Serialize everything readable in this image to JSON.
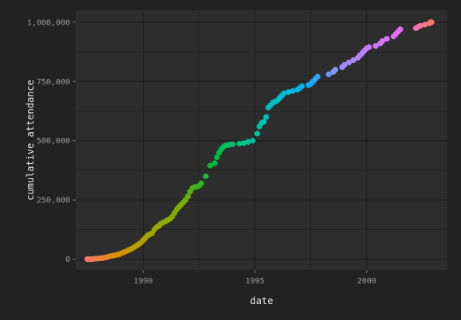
{
  "chart_data": {
    "type": "scatter",
    "title": "",
    "xlabel": "date",
    "ylabel": "cumulative attendance",
    "x_ticks": [
      "1990",
      "1995",
      "2000"
    ],
    "y_ticks": [
      "0",
      "250,000",
      "500,000",
      "750,000",
      "1,000,000"
    ],
    "x_tick_values": [
      1990,
      1995,
      2000
    ],
    "y_tick_values": [
      0,
      250000,
      500000,
      750000,
      1000000
    ],
    "xlim": [
      1986.985,
      2003.61
    ],
    "ylim": [
      -45000,
      1050000
    ],
    "grid": true,
    "legend": "none",
    "colors": {
      "background": "#222222",
      "panel": "#2d2d2d",
      "grid": "#1e1e1e",
      "gradient": [
        "#f8766d",
        "#e76bf3",
        "#c77cff",
        "#9590ff",
        "#00b0f6",
        "#00bfc4",
        "#00c08b",
        "#00ba38",
        "#7cae00",
        "#a3a500",
        "#d89000",
        "#f8766d"
      ]
    },
    "points_x": [
      1987.5,
      1987.6,
      1987.7,
      1987.8,
      1987.9,
      1988.0,
      1988.1,
      1988.2,
      1988.3,
      1988.4,
      1988.5,
      1988.6,
      1988.7,
      1988.8,
      1988.9,
      1989.0,
      1989.1,
      1989.2,
      1989.3,
      1989.4,
      1989.5,
      1989.6,
      1989.7,
      1989.8,
      1989.9,
      1990.0,
      1990.1,
      1990.2,
      1990.3,
      1990.4,
      1990.5,
      1990.6,
      1990.7,
      1990.75,
      1990.8,
      1990.9,
      1991.0,
      1991.1,
      1991.2,
      1991.3,
      1991.4,
      1991.5,
      1991.6,
      1991.7,
      1991.8,
      1991.9,
      1992.0,
      1992.1,
      1992.2,
      1992.3,
      1992.4,
      1992.5,
      1992.6,
      1992.8,
      1993.0,
      1993.2,
      1993.3,
      1993.4,
      1993.5,
      1993.6,
      1993.7,
      1993.8,
      1993.9,
      1994.0,
      1994.3,
      1994.5,
      1994.7,
      1994.9,
      1995.1,
      1995.2,
      1995.3,
      1995.4,
      1995.5,
      1995.6,
      1995.7,
      1995.8,
      1995.9,
      1996.0,
      1996.1,
      1996.2,
      1996.3,
      1996.5,
      1996.7,
      1996.9,
      1997.0,
      1997.1,
      1997.4,
      1997.5,
      1997.6,
      1997.7,
      1997.8,
      1998.3,
      1998.5,
      1998.6,
      1998.9,
      1999.0,
      1999.2,
      1999.4,
      1999.6,
      1999.7,
      1999.8,
      1999.9,
      2000.0,
      2000.1,
      2000.4,
      2000.6,
      2000.7,
      2000.9,
      2001.2,
      2001.3,
      2001.4,
      2001.5,
      2002.2,
      2002.3,
      2002.4,
      2002.6,
      2002.8,
      2002.85,
      2002.9
    ],
    "points_y": [
      0,
      0,
      0,
      1000,
      2000,
      3000,
      4000,
      5000,
      7000,
      9000,
      12000,
      14000,
      16000,
      18000,
      20000,
      24000,
      28000,
      32000,
      36000,
      40000,
      45000,
      51000,
      57000,
      63000,
      70000,
      80000,
      90000,
      100000,
      105000,
      110000,
      125000,
      135000,
      140000,
      145000,
      150000,
      155000,
      160000,
      165000,
      170000,
      180000,
      195000,
      210000,
      220000,
      230000,
      240000,
      250000,
      265000,
      285000,
      300000,
      305000,
      305000,
      310000,
      320000,
      350000,
      395000,
      405000,
      430000,
      450000,
      465000,
      475000,
      480000,
      482000,
      484000,
      485000,
      488000,
      490000,
      495000,
      500000,
      530000,
      560000,
      575000,
      580000,
      600000,
      640000,
      650000,
      660000,
      665000,
      670000,
      680000,
      690000,
      700000,
      705000,
      710000,
      715000,
      722000,
      730000,
      735000,
      740000,
      750000,
      760000,
      770000,
      780000,
      790000,
      800000,
      810000,
      820000,
      830000,
      840000,
      850000,
      860000,
      870000,
      880000,
      890000,
      895000,
      900000,
      910000,
      920000,
      930000,
      940000,
      950000,
      960000,
      970000,
      975000,
      980000,
      985000,
      990000,
      995000,
      1000000,
      1000000
    ]
  }
}
